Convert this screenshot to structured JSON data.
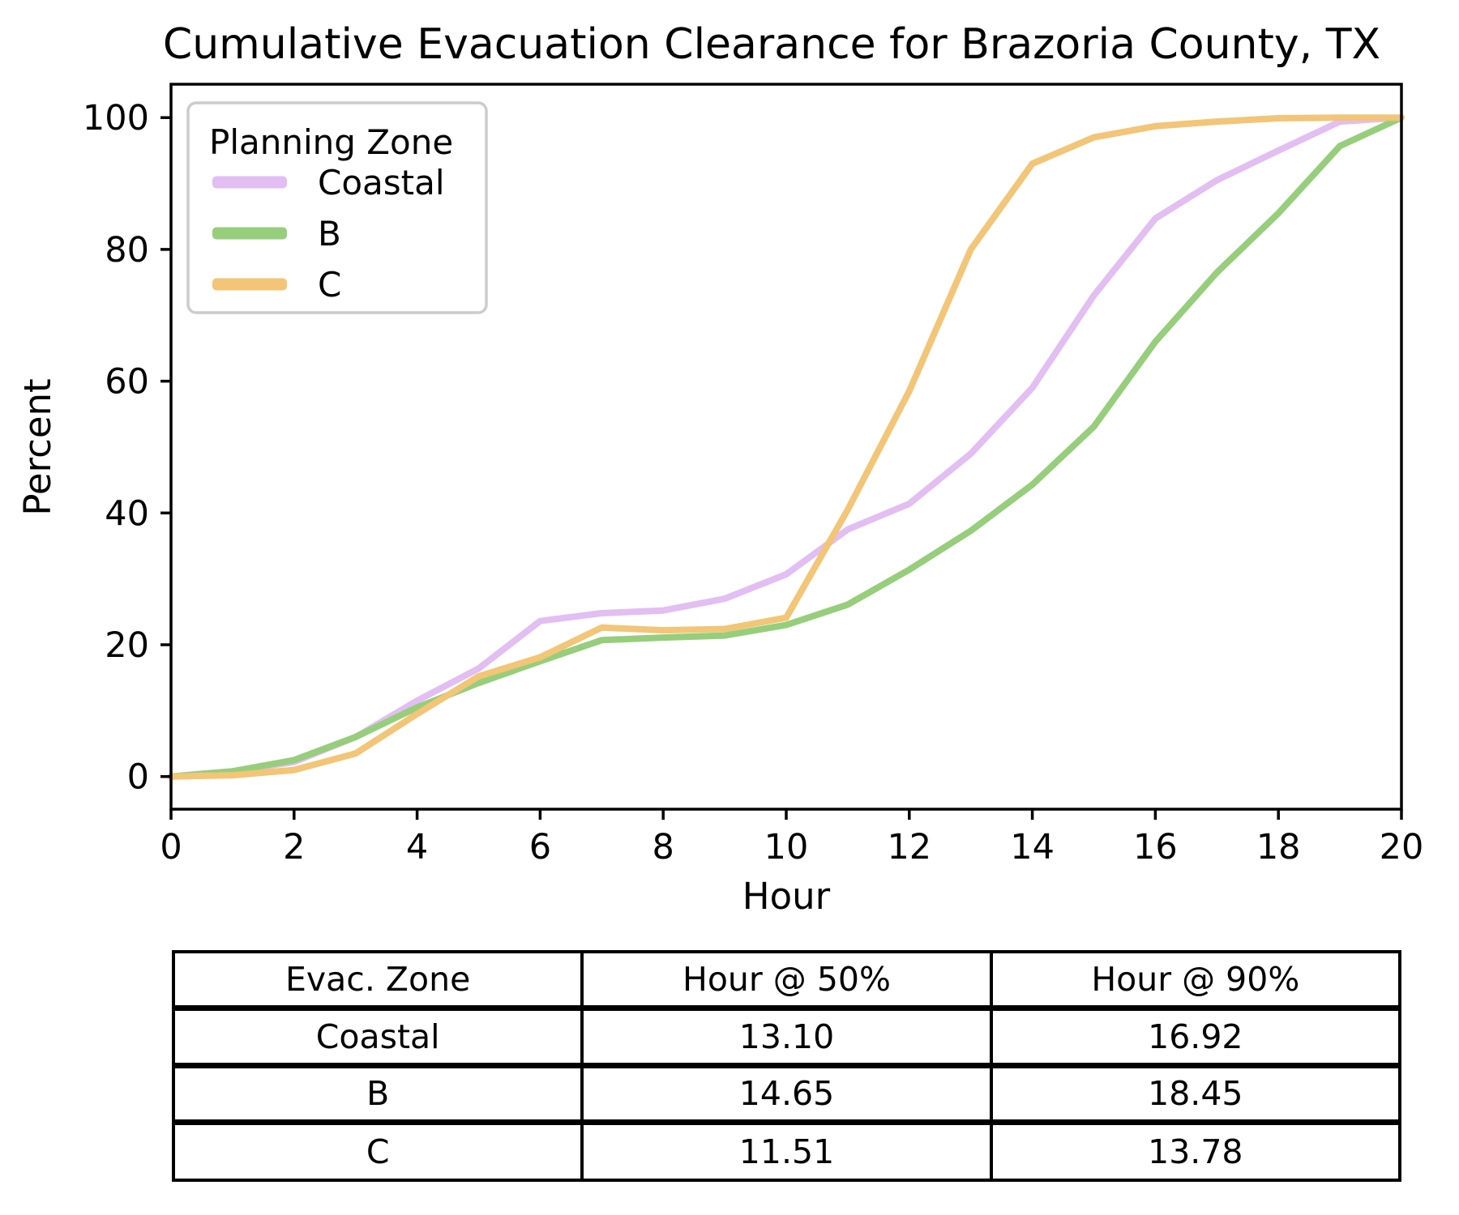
{
  "title": "Cumulative Evacuation Clearance for Brazoria County, TX",
  "chart_data": {
    "type": "line",
    "title": "Cumulative Evacuation Clearance for Brazoria County, TX",
    "xlabel": "Hour",
    "ylabel": "Percent",
    "xlim": [
      0,
      20
    ],
    "ylim": [
      -5,
      105
    ],
    "xticks": [
      0,
      2,
      4,
      6,
      8,
      10,
      12,
      14,
      16,
      18,
      20
    ],
    "yticks": [
      0,
      20,
      40,
      60,
      80,
      100
    ],
    "grid": false,
    "legend_title": "Planning Zone",
    "legend_position": "upper left",
    "x": [
      0,
      1,
      2,
      3,
      4,
      5,
      6,
      7,
      8,
      9,
      10,
      11,
      12,
      13,
      14,
      15,
      16,
      17,
      18,
      19,
      20
    ],
    "series": [
      {
        "name": "Coastal",
        "color": "#e2bef2",
        "values": [
          0,
          0.8,
          2.2,
          6,
          11.5,
          16.4,
          23.6,
          24.8,
          25.2,
          27,
          30.7,
          37.5,
          41.4,
          49,
          59,
          73,
          84.7,
          90.5,
          95,
          99.4,
          100
        ]
      },
      {
        "name": "B",
        "color": "#96ce7c",
        "values": [
          0,
          0.8,
          2.5,
          6,
          10.5,
          14.2,
          17.5,
          20.7,
          21.1,
          21.4,
          23,
          26.1,
          31.4,
          37.3,
          44.3,
          53.1,
          66,
          76.5,
          85.5,
          95.7,
          100
        ]
      },
      {
        "name": "C",
        "color": "#f2c577",
        "values": [
          0,
          0.2,
          1,
          3.5,
          9.5,
          15.2,
          18.1,
          22.6,
          22.2,
          22.4,
          24.1,
          40.5,
          58.5,
          80,
          93,
          97,
          98.7,
          99.4,
          99.9,
          100,
          100
        ]
      }
    ]
  },
  "table": {
    "headers": [
      "Evac. Zone",
      "Hour @ 50%",
      "Hour @ 90%"
    ],
    "rows": [
      [
        "Coastal",
        "13.10",
        "16.92"
      ],
      [
        "B",
        "14.65",
        "18.45"
      ],
      [
        "C",
        "11.51",
        "13.78"
      ]
    ]
  }
}
